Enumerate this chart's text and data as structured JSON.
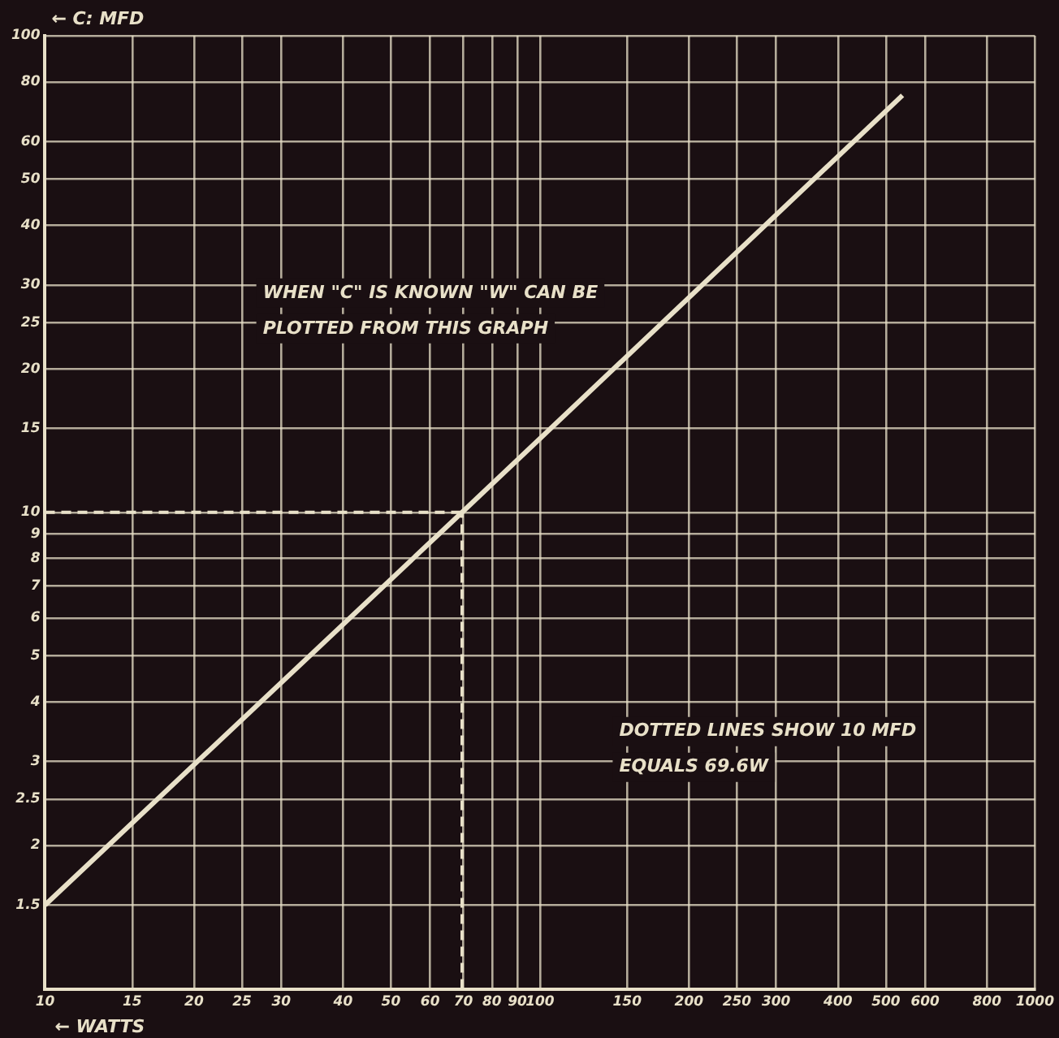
{
  "chart_data": {
    "type": "line",
    "xlabel": "← WATTS",
    "ylabel": "← C: MFD",
    "log": "xy",
    "grid": true,
    "legend": false,
    "marker": "none",
    "line_style": "solid",
    "xlim": [
      10,
      1000
    ],
    "xticks": [
      10,
      15,
      20,
      25,
      30,
      40,
      50,
      60,
      70,
      80,
      90,
      100,
      150,
      200,
      250,
      300,
      400,
      500,
      600,
      800,
      1000
    ],
    "ylim": [
      1,
      100
    ],
    "yticks": [
      {
        "value": 1,
        "label": null
      },
      1.5,
      2,
      2.5,
      3,
      4,
      5,
      6,
      7,
      8,
      9,
      10,
      15,
      20,
      25,
      30,
      40,
      50,
      60,
      80,
      100
    ],
    "series": [
      {
        "color": "#e8e0c8",
        "x": [
          10,
          69.6,
          540
        ],
        "values": [
          1.5,
          10,
          75
        ]
      }
    ],
    "ref_lines": [
      {
        "axis": "y",
        "value": 10,
        "line_style": "dashed",
        "color": "#e8e0c8"
      },
      {
        "axis": "x",
        "value": 69.6,
        "line_style": "dashed",
        "color": "#e8e0c8"
      }
    ],
    "annotations": [
      "WHEN \"C\" IS KNOWN \"W\" CAN BE PLOTTED FROM THIS GRAPH",
      "DOTTED LINES SHOW 10 MFD EQUALS 69.6W"
    ]
  }
}
